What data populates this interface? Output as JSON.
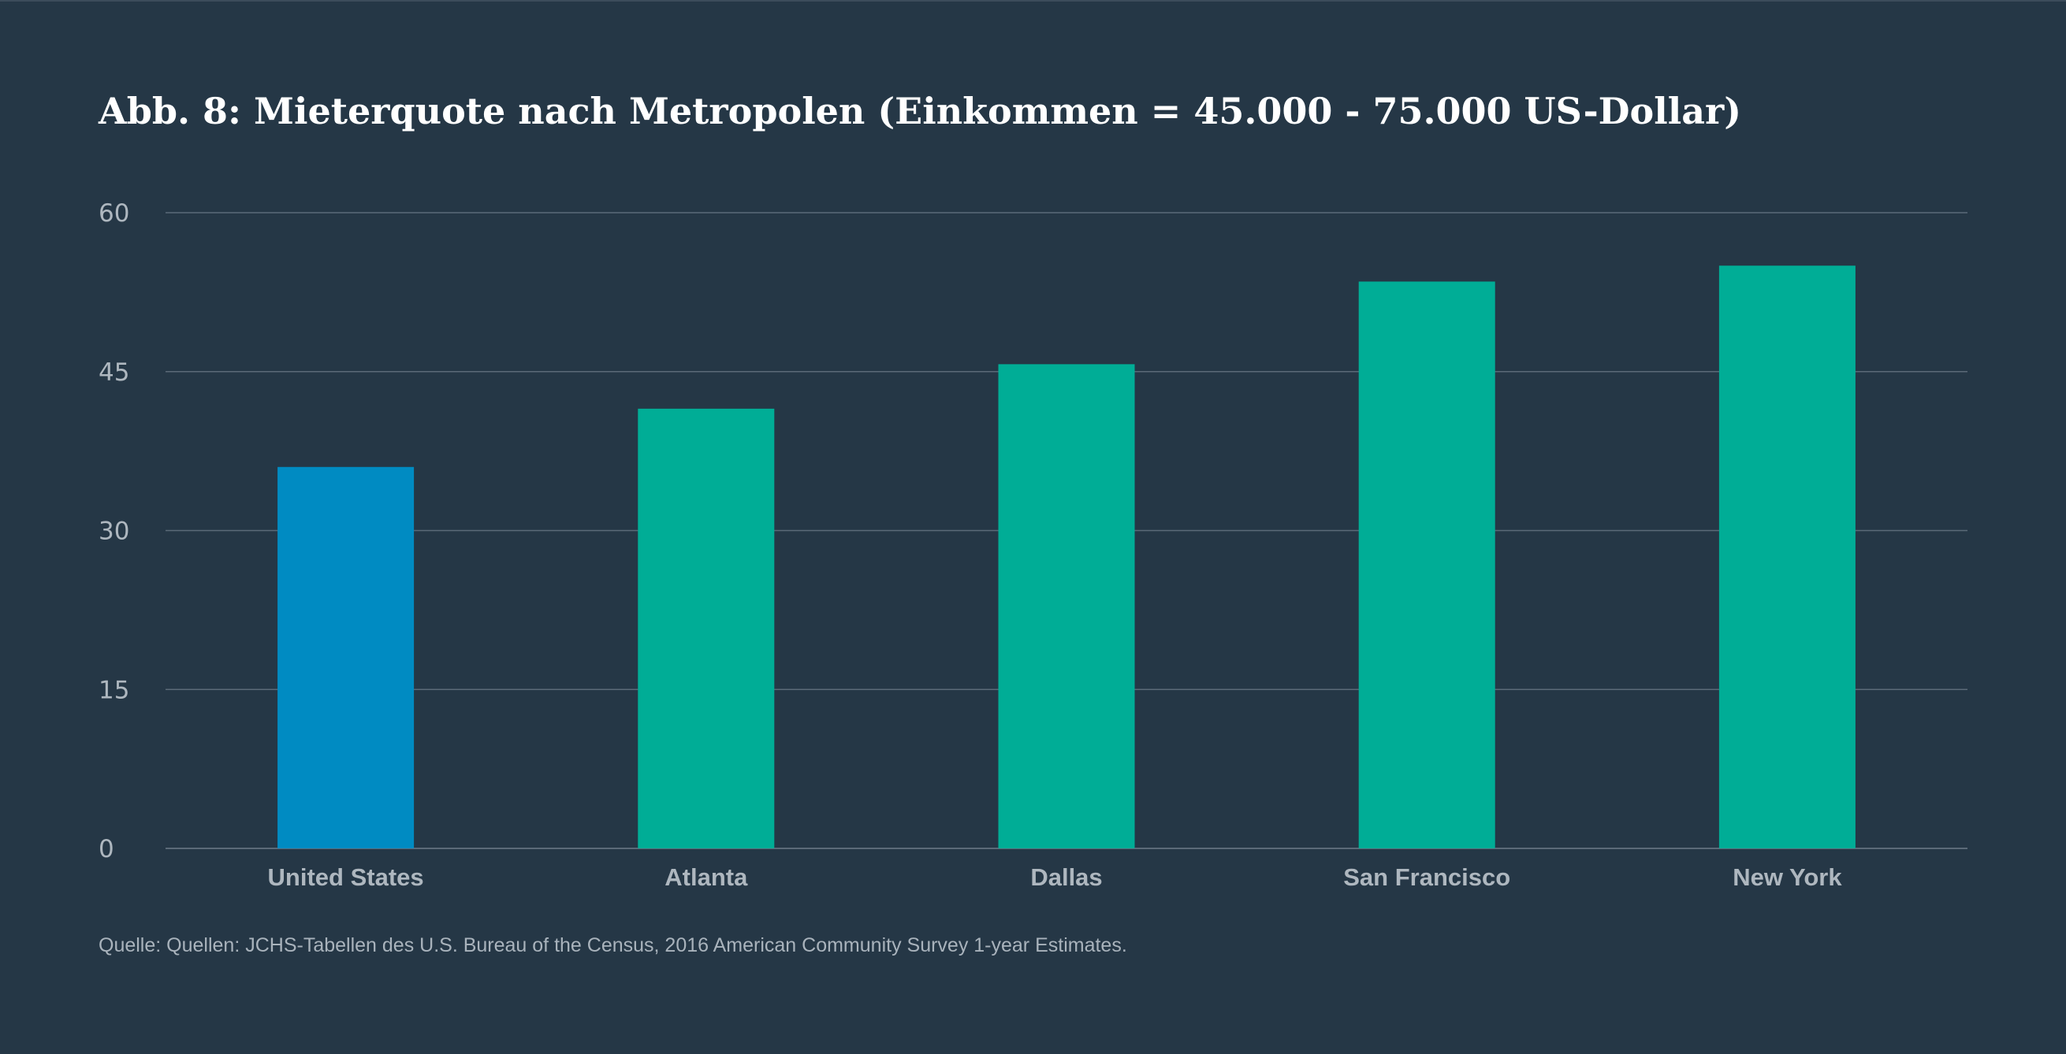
{
  "colors": {
    "background": "#253746",
    "grid": "#5b6a78",
    "tick_text": "#aeb7bf",
    "highlight_bar": "#008bc2",
    "bar": "#00ad96"
  },
  "chart_data": {
    "type": "bar",
    "title": "Abb. 8: Mieterquote nach Metropolen (Einkommen = 45.000 - 75.000 US-Dollar)",
    "xlabel": "",
    "ylabel": "",
    "categories": [
      "United States",
      "Atlanta",
      "Dallas",
      "San Francisco",
      "New York"
    ],
    "values": [
      36,
      41.5,
      45.7,
      53.5,
      55
    ],
    "bar_colors": [
      "#008bc2",
      "#00ad96",
      "#00ad96",
      "#00ad96",
      "#00ad96"
    ],
    "ylim": [
      0,
      60
    ],
    "yticks": [
      0,
      15,
      30,
      45,
      60
    ],
    "grid": true,
    "legend": "none"
  },
  "footer": {
    "source": "Quelle: Quellen: JCHS-Tabellen des U.S. Bureau of the Census, 2016 American Community Survey 1-year Estimates."
  }
}
